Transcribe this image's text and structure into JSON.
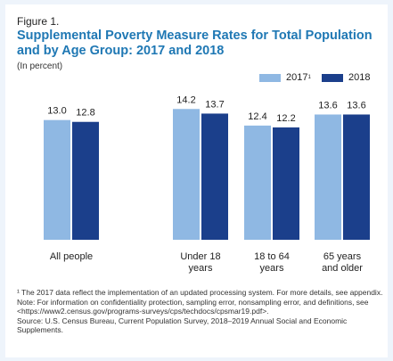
{
  "figure_label": "Figure 1.",
  "title_line1": "Supplemental Poverty Measure Rates for Total Population",
  "title_line2": "and by Age Group: 2017 and 2018",
  "subtitle": "(In percent)",
  "colors": {
    "s2017": "#8fb8e3",
    "s2018": "#1b3f8b",
    "page_bg": "#eef4fb"
  },
  "chart_data": {
    "type": "bar",
    "categories": [
      "All people",
      "Under 18 years",
      "18 to 64 years",
      "65 years and older"
    ],
    "category_lines": [
      [
        "All people"
      ],
      [
        "Under 18",
        "years"
      ],
      [
        "18 to 64",
        "years"
      ],
      [
        "65 years",
        "and older"
      ]
    ],
    "series": [
      {
        "name": "2017",
        "legend_sup": "1",
        "values": [
          13.0,
          14.2,
          12.4,
          13.6
        ]
      },
      {
        "name": "2018",
        "values": [
          12.8,
          13.7,
          12.2,
          13.6
        ]
      }
    ],
    "value_labels": [
      [
        "13.0",
        "14.2",
        "12.4",
        "13.6"
      ],
      [
        "12.8",
        "13.7",
        "12.2",
        "13.6"
      ]
    ],
    "ylim": [
      0,
      15
    ],
    "grid": false,
    "legend_position": "top-right",
    "xlabel": "",
    "ylabel": ""
  },
  "notes": {
    "footnote": "¹ The 2017 data reflect the implementation of an updated processing system. For more details, see appendix.",
    "note": "Note: For information on confidentiality protection, sampling error, nonsampling error, and definitions, see <https://www2.census.gov/programs-surveys/cps/techdocs/cpsmar19.pdf>.",
    "source": "Source: U.S. Census Bureau, Current Population Survey, 2018–2019 Annual Social and Economic Supplements."
  }
}
